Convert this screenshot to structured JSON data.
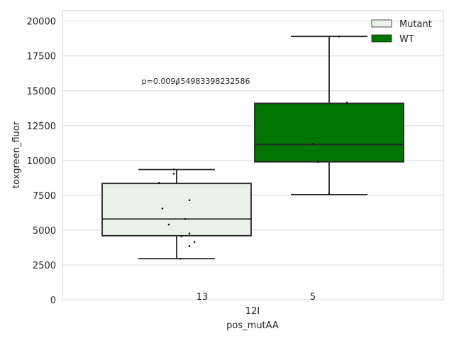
{
  "chart_data": {
    "type": "box",
    "xlabel": "pos_mutAA",
    "ylabel": "toxgreen_fluor",
    "categories": [
      "12I"
    ],
    "ylim": [
      0,
      20750
    ],
    "yticks": [
      0,
      2500,
      5000,
      7500,
      10000,
      12500,
      15000,
      17500,
      20000
    ],
    "grid": true,
    "legend_position": "top-right",
    "series": [
      {
        "name": "Mutant",
        "color": "#eaf2ea",
        "count_label": "13",
        "box": {
          "whisker_low": 2950,
          "q1": 4600,
          "median": 5800,
          "q3": 8350,
          "whisker_high": 9350
        },
        "points": [
          9350,
          9050,
          8400,
          7150,
          6550,
          5800,
          5400,
          4750,
          4550,
          4150,
          3850,
          2950,
          15500
        ]
      },
      {
        "name": "WT",
        "color": "#007500",
        "count_label": "5",
        "box": {
          "whisker_low": 7550,
          "q1": 9900,
          "median": 11150,
          "q3": 14100,
          "whisker_high": 18900
        },
        "points": [
          18900,
          14150,
          11200,
          9900,
          7600
        ]
      }
    ],
    "annotation": "p=0.009454983398232586"
  }
}
